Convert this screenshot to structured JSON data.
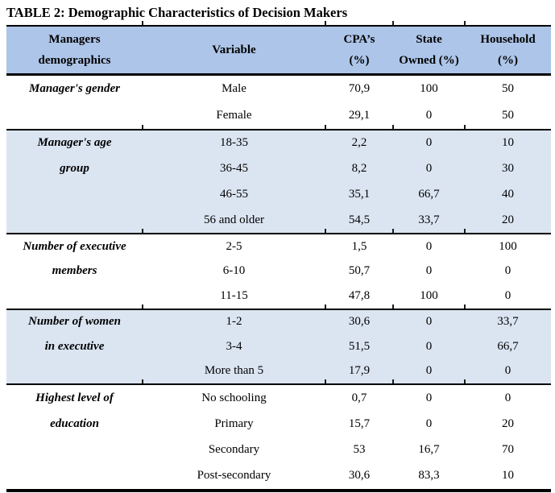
{
  "title": "TABLE 2: Demographic Characteristics of Decision Makers",
  "colors": {
    "header_bg": "#adc5e8",
    "band_bg": "#dbe5f2",
    "border": "#000000",
    "text": "#000000"
  },
  "header": {
    "columns": [
      {
        "id": "managers-demographics",
        "lines": [
          "Managers",
          "demographics"
        ]
      },
      {
        "id": "variable",
        "lines": [
          "Variable"
        ]
      },
      {
        "id": "cpas-percent",
        "lines": [
          "CPA’s",
          "(%)"
        ]
      },
      {
        "id": "state-owned-percent",
        "lines": [
          "State",
          "Owned (%)"
        ]
      },
      {
        "id": "household-percent",
        "lines": [
          "Household",
          "(%)"
        ]
      }
    ]
  },
  "sections": [
    {
      "id": "managers-gender",
      "label_lines": [
        "Manager's gender"
      ],
      "shaded": false,
      "rows": [
        [
          "Male",
          "70,9",
          "100",
          "50"
        ],
        [
          "Female",
          "29,1",
          "0",
          "50"
        ]
      ]
    },
    {
      "id": "managers-age-group",
      "label_lines": [
        "Manager's age",
        "group"
      ],
      "shaded": true,
      "rows": [
        [
          "18-35",
          "2,2",
          "0",
          "10"
        ],
        [
          "36-45",
          "8,2",
          "0",
          "30"
        ],
        [
          "46-55",
          "35,1",
          "66,7",
          "40"
        ],
        [
          "56 and older",
          "54,5",
          "33,7",
          "20"
        ]
      ]
    },
    {
      "id": "number-of-executive-members",
      "label_lines": [
        "Number of executive",
        "members"
      ],
      "shaded": false,
      "rows": [
        [
          "2-5",
          "1,5",
          "0",
          "100"
        ],
        [
          "6-10",
          "50,7",
          "0",
          "0"
        ],
        [
          "11-15",
          "47,8",
          "100",
          "0"
        ]
      ]
    },
    {
      "id": "number-of-women-in-executive",
      "label_lines": [
        "Number of women",
        "in executive"
      ],
      "shaded": true,
      "rows": [
        [
          "1-2",
          "30,6",
          "0",
          "33,7"
        ],
        [
          "3-4",
          "51,5",
          "0",
          "66,7"
        ],
        [
          "More than 5",
          "17,9",
          "0",
          "0"
        ]
      ]
    },
    {
      "id": "highest-level-of-education",
      "label_lines": [
        "Highest level of",
        "education"
      ],
      "shaded": false,
      "rows": [
        [
          "No schooling",
          "0,7",
          "0",
          "0"
        ],
        [
          "Primary",
          "15,7",
          "0",
          "20"
        ],
        [
          "Secondary",
          "53",
          "16,7",
          "70"
        ],
        [
          "Post-secondary",
          "30,6",
          "83,3",
          "10"
        ]
      ]
    }
  ]
}
